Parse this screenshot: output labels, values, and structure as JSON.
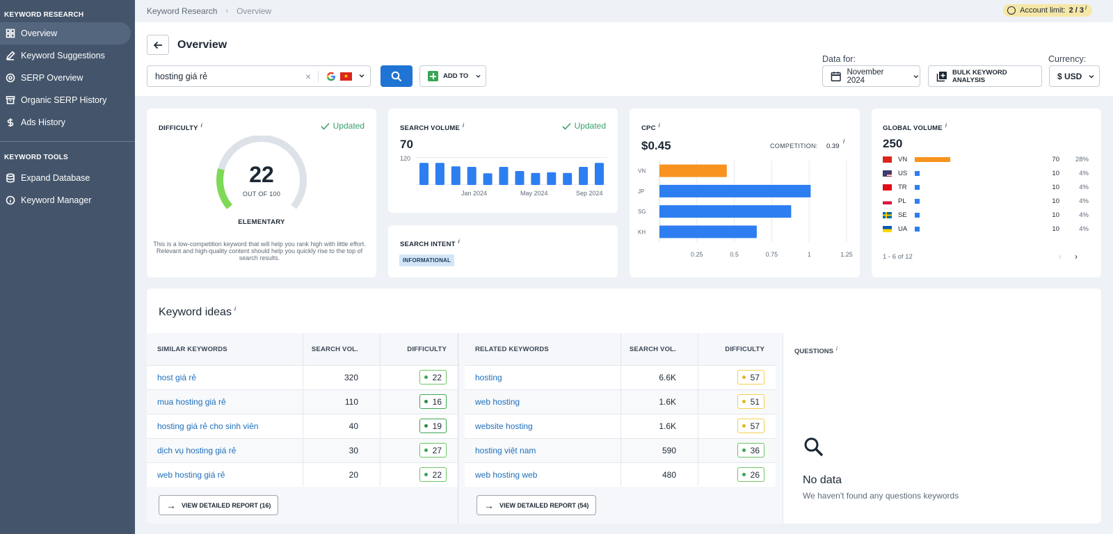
{
  "sidebar": {
    "section1": "KEYWORD RESEARCH",
    "items1": [
      {
        "label": "Overview"
      },
      {
        "label": "Keyword Suggestions"
      },
      {
        "label": "SERP Overview"
      },
      {
        "label": "Organic SERP History"
      },
      {
        "label": "Ads History"
      }
    ],
    "section2": "KEYWORD TOOLS",
    "items2": [
      {
        "label": "Expand Database"
      },
      {
        "label": "Keyword Manager"
      }
    ]
  },
  "breadcrumb": {
    "root": "Keyword Research",
    "current": "Overview"
  },
  "account": {
    "label": "Account limit:",
    "value": "2 / 3",
    "info": "i"
  },
  "header": {
    "title": "Overview",
    "search_value": "hosting giá rẻ",
    "add_to": "ADD TO",
    "data_for_label": "Data for:",
    "date": "November 2024",
    "bulk": "BULK KEYWORD ANALYSIS",
    "currency_label": "Currency:",
    "currency": "$ USD"
  },
  "difficulty": {
    "title": "DIFFICULTY",
    "info": "i",
    "updated": "Updated",
    "value": "22",
    "out_of": "OUT OF 100",
    "level": "ELEMENTARY",
    "gauge_fraction": 0.22,
    "description": "This is a low-competition keyword that will help you rank high with little effort. Relevant and high-quality content should help you quickly rise to the top of search results."
  },
  "search_volume": {
    "title": "SEARCH VOLUME",
    "info": "i",
    "updated": "Updated",
    "value": "70",
    "y_tick": "120",
    "x_labels": [
      "Jan 2024",
      "May 2024",
      "Sep 2024"
    ]
  },
  "intent": {
    "title": "SEARCH INTENT",
    "info": "i",
    "badge": "INFORMATIONAL"
  },
  "cpc": {
    "title": "CPC",
    "info": "i",
    "value": "$0.45",
    "competition_label": "COMPETITION:",
    "competition_value": "0.39",
    "competition_info": "i"
  },
  "global_volume": {
    "title": "GLOBAL VOLUME",
    "info": "i",
    "value": "250",
    "rows": [
      {
        "code": "VN",
        "value": "70",
        "pct": "28%"
      },
      {
        "code": "US",
        "value": "10",
        "pct": "4%"
      },
      {
        "code": "TR",
        "value": "10",
        "pct": "4%"
      },
      {
        "code": "PL",
        "value": "10",
        "pct": "4%"
      },
      {
        "code": "SE",
        "value": "10",
        "pct": "4%"
      },
      {
        "code": "UA",
        "value": "10",
        "pct": "4%"
      }
    ],
    "pager": "1 - 6 of 12"
  },
  "chart_data": [
    {
      "type": "bar",
      "chart": "search_volume",
      "categories": [
        "Dec 2023",
        "Jan 2024",
        "Feb 2024",
        "Mar 2024",
        "Apr 2024",
        "May 2024",
        "Jun 2024",
        "Jul 2024",
        "Aug 2024",
        "Sep 2024",
        "Oct 2024",
        "Nov 2024"
      ],
      "values": [
        95,
        95,
        80,
        78,
        50,
        78,
        60,
        52,
        55,
        52,
        78,
        95
      ],
      "ylim": [
        0,
        120
      ],
      "color": "#2d7ef0"
    },
    {
      "type": "bar",
      "chart": "cpc",
      "orientation": "horizontal",
      "categories": [
        "VN",
        "JP",
        "SG",
        "KH"
      ],
      "values": [
        0.45,
        1.01,
        0.88,
        0.65
      ],
      "colors": [
        "#f7931e",
        "#2d7ef0",
        "#2d7ef0",
        "#2d7ef0"
      ],
      "xlim": [
        0,
        1.25
      ],
      "x_ticks": [
        "0.25",
        "0.5",
        "0.75",
        "1",
        "1.25"
      ]
    },
    {
      "type": "bar",
      "chart": "global_volume",
      "orientation": "horizontal",
      "categories": [
        "VN",
        "US",
        "TR",
        "PL",
        "SE",
        "UA"
      ],
      "values": [
        70,
        10,
        10,
        10,
        10,
        10
      ]
    }
  ],
  "ideas": {
    "title": "Keyword ideas",
    "info": "i",
    "similar": {
      "headers": [
        "SIMILAR KEYWORDS",
        "SEARCH VOL.",
        "DIFFICULTY"
      ],
      "rows": [
        {
          "kw": "host giá rẻ",
          "vol": "320",
          "diff": "22"
        },
        {
          "kw": "mua hosting giá rẻ",
          "vol": "110",
          "diff": "16"
        },
        {
          "kw": "hosting giá rẻ cho sinh viên",
          "vol": "40",
          "diff": "19"
        },
        {
          "kw": "dịch vụ hosting giá rẻ",
          "vol": "30",
          "diff": "27"
        },
        {
          "kw": "web hosting giá rẻ",
          "vol": "20",
          "diff": "22"
        }
      ],
      "report": "VIEW DETAILED REPORT (16)"
    },
    "related": {
      "headers": [
        "RELATED KEYWORDS",
        "SEARCH VOL.",
        "DIFFICULTY"
      ],
      "rows": [
        {
          "kw": "hosting",
          "vol": "6.6K",
          "diff": "57"
        },
        {
          "kw": "web hosting",
          "vol": "1.6K",
          "diff": "51"
        },
        {
          "kw": "website hosting",
          "vol": "1.6K",
          "diff": "57"
        },
        {
          "kw": "hosting việt nam",
          "vol": "590",
          "diff": "36"
        },
        {
          "kw": "web hosting web",
          "vol": "480",
          "diff": "26"
        }
      ],
      "report": "VIEW DETAILED REPORT (54)"
    },
    "questions": {
      "title": "QUESTIONS",
      "info": "i",
      "empty_title": "No data",
      "empty_sub": "We haven't found any questions keywords"
    }
  }
}
